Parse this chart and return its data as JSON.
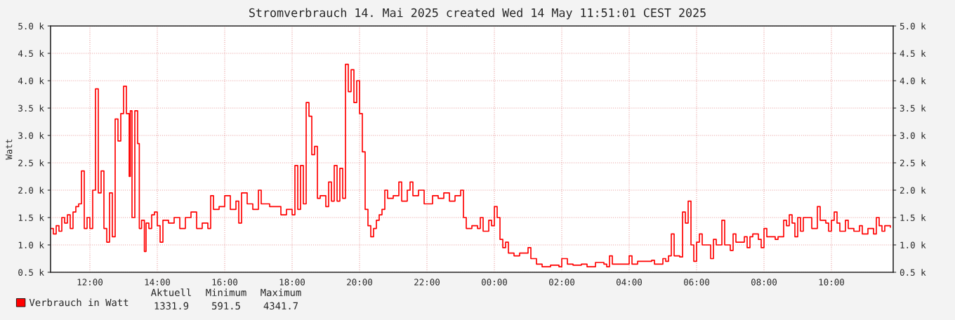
{
  "chart_data": {
    "type": "step",
    "title": "Stromverbrauch 14. Mai 2025 created Wed 14 May 11:51:01 CEST 2025",
    "ylabel": "Watt",
    "x": [
      "2025-05-13T10:50",
      "2025-05-13T10:55",
      "2025-05-13T11:00",
      "2025-05-13T11:05",
      "2025-05-13T11:10",
      "2025-05-13T11:15",
      "2025-05-13T11:20",
      "2025-05-13T11:25",
      "2025-05-13T11:30",
      "2025-05-13T11:35",
      "2025-05-13T11:40",
      "2025-05-13T11:45",
      "2025-05-13T11:50",
      "2025-05-13T11:55",
      "2025-05-13T12:00",
      "2025-05-13T12:05",
      "2025-05-13T12:10",
      "2025-05-13T12:15",
      "2025-05-13T12:20",
      "2025-05-13T12:25",
      "2025-05-13T12:30",
      "2025-05-13T12:35",
      "2025-05-13T12:40",
      "2025-05-13T12:45",
      "2025-05-13T12:50",
      "2025-05-13T12:55",
      "2025-05-13T13:00",
      "2025-05-13T13:05",
      "2025-05-13T13:10",
      "2025-05-13T13:12",
      "2025-05-13T13:15",
      "2025-05-13T13:20",
      "2025-05-13T13:25",
      "2025-05-13T13:28",
      "2025-05-13T13:32",
      "2025-05-13T13:37",
      "2025-05-13T13:40",
      "2025-05-13T13:45",
      "2025-05-13T13:50",
      "2025-05-13T13:55",
      "2025-05-13T14:00",
      "2025-05-13T14:05",
      "2025-05-13T14:10",
      "2025-05-13T14:20",
      "2025-05-13T14:30",
      "2025-05-13T14:40",
      "2025-05-13T14:50",
      "2025-05-13T15:00",
      "2025-05-13T15:10",
      "2025-05-13T15:20",
      "2025-05-13T15:30",
      "2025-05-13T15:35",
      "2025-05-13T15:40",
      "2025-05-13T15:50",
      "2025-05-13T16:00",
      "2025-05-13T16:10",
      "2025-05-13T16:20",
      "2025-05-13T16:25",
      "2025-05-13T16:30",
      "2025-05-13T16:40",
      "2025-05-13T16:50",
      "2025-05-13T17:00",
      "2025-05-13T17:05",
      "2025-05-13T17:20",
      "2025-05-13T17:40",
      "2025-05-13T17:50",
      "2025-05-13T18:00",
      "2025-05-13T18:05",
      "2025-05-13T18:10",
      "2025-05-13T18:15",
      "2025-05-13T18:20",
      "2025-05-13T18:25",
      "2025-05-13T18:30",
      "2025-05-13T18:35",
      "2025-05-13T18:40",
      "2025-05-13T18:45",
      "2025-05-13T18:50",
      "2025-05-13T19:00",
      "2025-05-13T19:05",
      "2025-05-13T19:10",
      "2025-05-13T19:15",
      "2025-05-13T19:20",
      "2025-05-13T19:25",
      "2025-05-13T19:30",
      "2025-05-13T19:35",
      "2025-05-13T19:40",
      "2025-05-13T19:45",
      "2025-05-13T19:50",
      "2025-05-13T19:55",
      "2025-05-13T20:00",
      "2025-05-13T20:05",
      "2025-05-13T20:10",
      "2025-05-13T20:15",
      "2025-05-13T20:20",
      "2025-05-13T20:25",
      "2025-05-13T20:30",
      "2025-05-13T20:35",
      "2025-05-13T20:40",
      "2025-05-13T20:45",
      "2025-05-13T20:50",
      "2025-05-13T21:00",
      "2025-05-13T21:10",
      "2025-05-13T21:15",
      "2025-05-13T21:25",
      "2025-05-13T21:30",
      "2025-05-13T21:35",
      "2025-05-13T21:45",
      "2025-05-13T21:55",
      "2025-05-13T22:10",
      "2025-05-13T22:20",
      "2025-05-13T22:30",
      "2025-05-13T22:40",
      "2025-05-13T22:50",
      "2025-05-13T23:00",
      "2025-05-13T23:05",
      "2025-05-13T23:10",
      "2025-05-13T23:20",
      "2025-05-13T23:30",
      "2025-05-13T23:35",
      "2025-05-13T23:40",
      "2025-05-13T23:50",
      "2025-05-13T23:55",
      "2025-05-14T00:00",
      "2025-05-14T00:05",
      "2025-05-14T00:10",
      "2025-05-14T00:15",
      "2025-05-14T00:20",
      "2025-05-14T00:25",
      "2025-05-14T00:35",
      "2025-05-14T00:45",
      "2025-05-14T00:55",
      "2025-05-14T01:00",
      "2025-05-14T01:05",
      "2025-05-14T01:15",
      "2025-05-14T01:25",
      "2025-05-14T01:40",
      "2025-05-14T01:55",
      "2025-05-14T02:00",
      "2025-05-14T02:10",
      "2025-05-14T02:20",
      "2025-05-14T02:35",
      "2025-05-14T02:45",
      "2025-05-14T03:00",
      "2025-05-14T03:15",
      "2025-05-14T03:20",
      "2025-05-14T03:25",
      "2025-05-14T03:30",
      "2025-05-14T03:45",
      "2025-05-14T04:00",
      "2025-05-14T04:05",
      "2025-05-14T04:15",
      "2025-05-14T04:30",
      "2025-05-14T04:40",
      "2025-05-14T04:45",
      "2025-05-14T05:00",
      "2025-05-14T05:05",
      "2025-05-14T05:10",
      "2025-05-14T05:15",
      "2025-05-14T05:20",
      "2025-05-14T05:30",
      "2025-05-14T05:35",
      "2025-05-14T05:40",
      "2025-05-14T05:45",
      "2025-05-14T05:50",
      "2025-05-14T05:55",
      "2025-05-14T06:00",
      "2025-05-14T06:05",
      "2025-05-14T06:10",
      "2025-05-14T06:20",
      "2025-05-14T06:25",
      "2025-05-14T06:30",
      "2025-05-14T06:35",
      "2025-05-14T06:45",
      "2025-05-14T06:50",
      "2025-05-14T07:00",
      "2025-05-14T07:05",
      "2025-05-14T07:10",
      "2025-05-14T07:20",
      "2025-05-14T07:25",
      "2025-05-14T07:30",
      "2025-05-14T07:35",
      "2025-05-14T07:40",
      "2025-05-14T07:50",
      "2025-05-14T07:55",
      "2025-05-14T08:00",
      "2025-05-14T08:05",
      "2025-05-14T08:20",
      "2025-05-14T08:25",
      "2025-05-14T08:35",
      "2025-05-14T08:40",
      "2025-05-14T08:45",
      "2025-05-14T08:50",
      "2025-05-14T08:55",
      "2025-05-14T09:00",
      "2025-05-14T09:05",
      "2025-05-14T09:10",
      "2025-05-14T09:20",
      "2025-05-14T09:25",
      "2025-05-14T09:35",
      "2025-05-14T09:40",
      "2025-05-14T09:50",
      "2025-05-14T09:55",
      "2025-05-14T10:00",
      "2025-05-14T10:05",
      "2025-05-14T10:10",
      "2025-05-14T10:15",
      "2025-05-14T10:25",
      "2025-05-14T10:30",
      "2025-05-14T10:40",
      "2025-05-14T10:50",
      "2025-05-14T10:55",
      "2025-05-14T11:05",
      "2025-05-14T11:15",
      "2025-05-14T11:20",
      "2025-05-14T11:25",
      "2025-05-14T11:30",
      "2025-05-14T11:35",
      "2025-05-14T11:45"
    ],
    "series": [
      {
        "name": "Verbrauch in Watt",
        "color": "#ff0000",
        "values": [
          1300,
          1200,
          1350,
          1250,
          1500,
          1400,
          1550,
          1300,
          1600,
          1700,
          1750,
          2350,
          1300,
          1500,
          1300,
          2000,
          3850,
          1950,
          2350,
          1300,
          1050,
          1950,
          1150,
          3300,
          2900,
          3400,
          3900,
          3400,
          2250,
          3450,
          1500,
          3450,
          2850,
          1300,
          1450,
          880,
          1400,
          1300,
          1550,
          1600,
          1350,
          1050,
          1450,
          1400,
          1500,
          1300,
          1500,
          1600,
          1300,
          1400,
          1300,
          1900,
          1650,
          1700,
          1900,
          1650,
          1800,
          1400,
          1950,
          1750,
          1650,
          2000,
          1750,
          1700,
          1550,
          1650,
          1550,
          2450,
          1650,
          2450,
          1750,
          3600,
          3350,
          2650,
          2800,
          1850,
          1900,
          1700,
          2150,
          1800,
          2450,
          1800,
          2400,
          1850,
          4300,
          3800,
          4200,
          3600,
          4000,
          3400,
          2700,
          1650,
          1350,
          1150,
          1300,
          1450,
          1550,
          1650,
          2000,
          1850,
          1900,
          2150,
          1800,
          2000,
          2150,
          1900,
          2000,
          1750,
          1900,
          1850,
          1950,
          1800,
          1900,
          2000,
          1500,
          1300,
          1350,
          1300,
          1500,
          1250,
          1450,
          1350,
          1700,
          1500,
          1100,
          950,
          1050,
          850,
          800,
          850,
          850,
          950,
          750,
          650,
          600,
          630,
          600,
          750,
          650,
          630,
          650,
          600,
          680,
          650,
          600,
          800,
          650,
          650,
          800,
          650,
          700,
          700,
          720,
          650,
          750,
          700,
          800,
          1200,
          800,
          780,
          1600,
          1400,
          1800,
          1000,
          700,
          1050,
          1200,
          1000,
          1000,
          750,
          1100,
          1000,
          1450,
          1000,
          900,
          1200,
          1050,
          1050,
          1150,
          950,
          1150,
          1200,
          1100,
          950,
          1300,
          1150,
          1100,
          1150,
          1450,
          1350,
          1550,
          1400,
          1150,
          1500,
          1250,
          1500,
          1500,
          1300,
          1700,
          1450,
          1400,
          1250,
          1450,
          1600,
          1400,
          1250,
          1450,
          1300,
          1250,
          1350,
          1200,
          1300,
          1200,
          1500,
          1350,
          1250,
          1350,
          1320
        ]
      }
    ],
    "xlim": [
      "2025-05-13T10:50",
      "2025-05-14T11:50"
    ],
    "xticks": [
      {
        "value": "2025-05-13T12:00",
        "label": "12:00"
      },
      {
        "value": "2025-05-13T14:00",
        "label": "14:00"
      },
      {
        "value": "2025-05-13T16:00",
        "label": "16:00"
      },
      {
        "value": "2025-05-13T18:00",
        "label": "18:00"
      },
      {
        "value": "2025-05-13T20:00",
        "label": "20:00"
      },
      {
        "value": "2025-05-13T22:00",
        "label": "22:00"
      },
      {
        "value": "2025-05-14T00:00",
        "label": "00:00"
      },
      {
        "value": "2025-05-14T02:00",
        "label": "02:00"
      },
      {
        "value": "2025-05-14T04:00",
        "label": "04:00"
      },
      {
        "value": "2025-05-14T06:00",
        "label": "06:00"
      },
      {
        "value": "2025-05-14T08:00",
        "label": "08:00"
      },
      {
        "value": "2025-05-14T10:00",
        "label": "10:00"
      }
    ],
    "ylim": [
      500,
      5000
    ],
    "yticks": [
      {
        "value": 500,
        "label": "0.5 k"
      },
      {
        "value": 1000,
        "label": "1.0 k"
      },
      {
        "value": 1500,
        "label": "1.5 k"
      },
      {
        "value": 2000,
        "label": "2.0 k"
      },
      {
        "value": 2500,
        "label": "2.5 k"
      },
      {
        "value": 3000,
        "label": "3.0 k"
      },
      {
        "value": 3500,
        "label": "3.5 k"
      },
      {
        "value": 4000,
        "label": "4.0 k"
      },
      {
        "value": 4500,
        "label": "4.5 k"
      },
      {
        "value": 5000,
        "label": "5.0 k"
      }
    ],
    "y2lim": [
      500,
      5000
    ],
    "y2ticks": [
      {
        "value": 500,
        "label": "0.5 k"
      },
      {
        "value": 1000,
        "label": "1.0 k"
      },
      {
        "value": 1500,
        "label": "1.5 k"
      },
      {
        "value": 2000,
        "label": "2.0 k"
      },
      {
        "value": 2500,
        "label": "2.5 k"
      },
      {
        "value": 3000,
        "label": "3.0 k"
      },
      {
        "value": 3500,
        "label": "3.5 k"
      },
      {
        "value": 4000,
        "label": "4.0 k"
      },
      {
        "value": 4500,
        "label": "4.5 k"
      },
      {
        "value": 5000,
        "label": "5.0 k"
      }
    ],
    "annotations": [
      "Aktuell",
      "Minimum",
      "Maximum",
      "1331.9",
      "591.5",
      "4341.7"
    ],
    "grid": true,
    "legend": "bottom left",
    "line_style": "solid"
  }
}
